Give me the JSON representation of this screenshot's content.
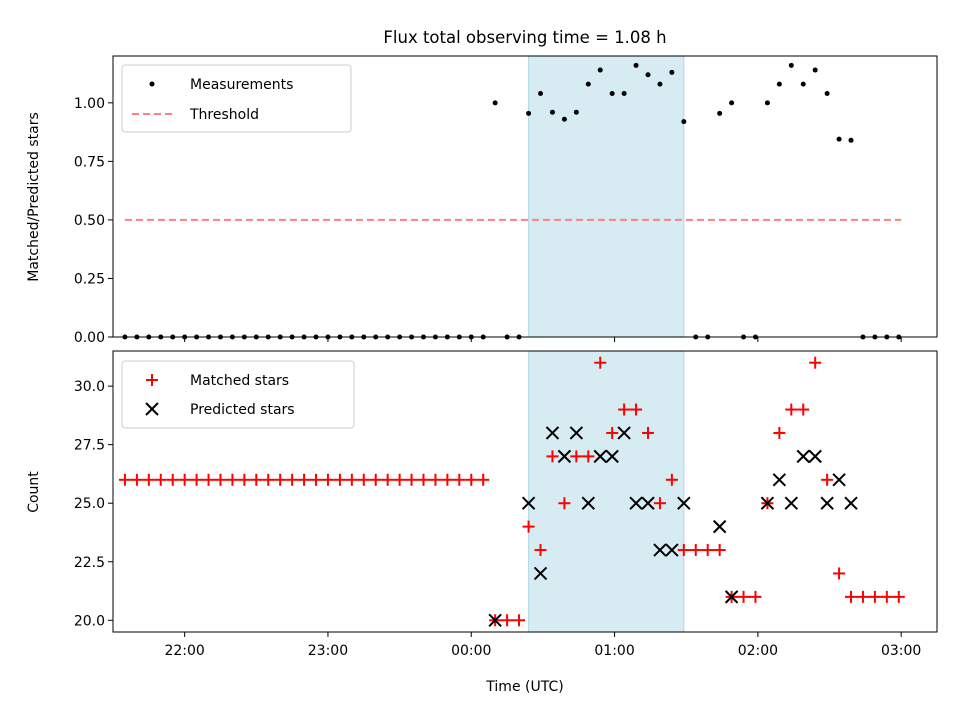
{
  "chart_data": [
    {
      "type": "scatter",
      "title": "Flux total observing time = 1.08 h",
      "xlabel": "",
      "ylabel": "Matched/Predicted stars",
      "ylim": [
        0,
        1.2
      ],
      "xlim": [
        "21:30",
        "03:15"
      ],
      "yticks": [
        "0.00",
        "0.25",
        "0.50",
        "0.75",
        "1.00"
      ],
      "grid": false,
      "legend_position": "top-left",
      "highlight_span": [
        "00:24",
        "01:29"
      ],
      "highlight_color": "#add8e6",
      "threshold": {
        "name": "Threshold",
        "value": 0.5,
        "x_range": [
          "21:35",
          "03:00"
        ],
        "color": "#ff7f7f"
      },
      "series": [
        {
          "name": "Measurements",
          "color": "#000000",
          "x": [
            "21:35",
            "21:40",
            "21:45",
            "21:50",
            "21:55",
            "22:00",
            "22:05",
            "22:10",
            "22:15",
            "22:20",
            "22:25",
            "22:30",
            "22:35",
            "22:40",
            "22:45",
            "22:50",
            "22:55",
            "23:00",
            "23:05",
            "23:10",
            "23:15",
            "23:20",
            "23:25",
            "23:30",
            "23:35",
            "23:40",
            "23:45",
            "23:50",
            "23:55",
            "00:00",
            "00:05",
            "00:10",
            "00:15",
            "00:20",
            "00:24",
            "00:29",
            "00:34",
            "00:39",
            "00:44",
            "00:49",
            "00:54",
            "00:59",
            "01:04",
            "01:09",
            "01:14",
            "01:19",
            "01:24",
            "01:29",
            "01:34",
            "01:39",
            "01:44",
            "01:49",
            "01:54",
            "01:59",
            "02:04",
            "02:09",
            "02:14",
            "02:19",
            "02:24",
            "02:29",
            "02:34",
            "02:39",
            "02:44",
            "02:49",
            "02:54",
            "02:59"
          ],
          "y": [
            0,
            0,
            0,
            0,
            0,
            0,
            0,
            0,
            0,
            0,
            0,
            0,
            0,
            0,
            0,
            0,
            0,
            0,
            0,
            0,
            0,
            0,
            0,
            0,
            0,
            0,
            0,
            0,
            0,
            0,
            0,
            1.0,
            0,
            0,
            0.955,
            1.04,
            0.96,
            0.93,
            0.96,
            1.08,
            1.14,
            1.04,
            1.04,
            1.16,
            1.12,
            1.08,
            1.13,
            0.92,
            0,
            0,
            0.955,
            1.0,
            0,
            0,
            1.0,
            1.08,
            1.16,
            1.08,
            1.14,
            1.04,
            0.845,
            0.84,
            0,
            0,
            0,
            0
          ]
        }
      ]
    },
    {
      "type": "scatter",
      "title": "",
      "xlabel": "Time (UTC)",
      "ylabel": "Count",
      "ylim": [
        19.5,
        31.5
      ],
      "xlim": [
        "21:30",
        "03:15"
      ],
      "xticks": [
        "22:00",
        "23:00",
        "00:00",
        "01:00",
        "02:00",
        "03:00"
      ],
      "yticks": [
        "20.0",
        "22.5",
        "25.0",
        "27.5",
        "30.0"
      ],
      "grid": false,
      "legend_position": "top-left",
      "highlight_span": [
        "00:24",
        "01:29"
      ],
      "highlight_color": "#add8e6",
      "series": [
        {
          "name": "Matched stars",
          "color": "#ff0000",
          "marker": "plus",
          "x": [
            "21:35",
            "21:40",
            "21:45",
            "21:50",
            "21:55",
            "22:00",
            "22:05",
            "22:10",
            "22:15",
            "22:20",
            "22:25",
            "22:30",
            "22:35",
            "22:40",
            "22:45",
            "22:50",
            "22:55",
            "23:00",
            "23:05",
            "23:10",
            "23:15",
            "23:20",
            "23:25",
            "23:30",
            "23:35",
            "23:40",
            "23:45",
            "23:50",
            "23:55",
            "00:00",
            "00:05",
            "00:10",
            "00:15",
            "00:20",
            "00:24",
            "00:29",
            "00:34",
            "00:39",
            "00:44",
            "00:49",
            "00:54",
            "00:59",
            "01:04",
            "01:09",
            "01:14",
            "01:19",
            "01:24",
            "01:29",
            "01:34",
            "01:39",
            "01:44",
            "01:49",
            "01:54",
            "01:59",
            "02:04",
            "02:09",
            "02:14",
            "02:19",
            "02:24",
            "02:29",
            "02:34",
            "02:39",
            "02:44",
            "02:49",
            "02:54",
            "02:59"
          ],
          "y": [
            26,
            26,
            26,
            26,
            26,
            26,
            26,
            26,
            26,
            26,
            26,
            26,
            26,
            26,
            26,
            26,
            26,
            26,
            26,
            26,
            26,
            26,
            26,
            26,
            26,
            26,
            26,
            26,
            26,
            26,
            26,
            20,
            20,
            20,
            24,
            23,
            27,
            25,
            27,
            27,
            31,
            28,
            29,
            29,
            28,
            25,
            26,
            23,
            23,
            23,
            23,
            21,
            21,
            21,
            25,
            28,
            29,
            29,
            31,
            26,
            22,
            21,
            21,
            21,
            21,
            21
          ]
        },
        {
          "name": "Predicted stars",
          "color": "#000000",
          "marker": "x",
          "x": [
            "00:10",
            "00:24",
            "00:29",
            "00:34",
            "00:39",
            "00:44",
            "00:49",
            "00:54",
            "00:59",
            "01:04",
            "01:09",
            "01:14",
            "01:19",
            "01:24",
            "01:29",
            "01:44",
            "01:49",
            "02:04",
            "02:09",
            "02:14",
            "02:19",
            "02:24",
            "02:29",
            "02:34",
            "02:39"
          ],
          "y": [
            20,
            25,
            22,
            28,
            27,
            28,
            25,
            27,
            27,
            28,
            25,
            25,
            23,
            23,
            25,
            24,
            21,
            25,
            26,
            25,
            27,
            27,
            25,
            26,
            25
          ]
        }
      ]
    }
  ]
}
